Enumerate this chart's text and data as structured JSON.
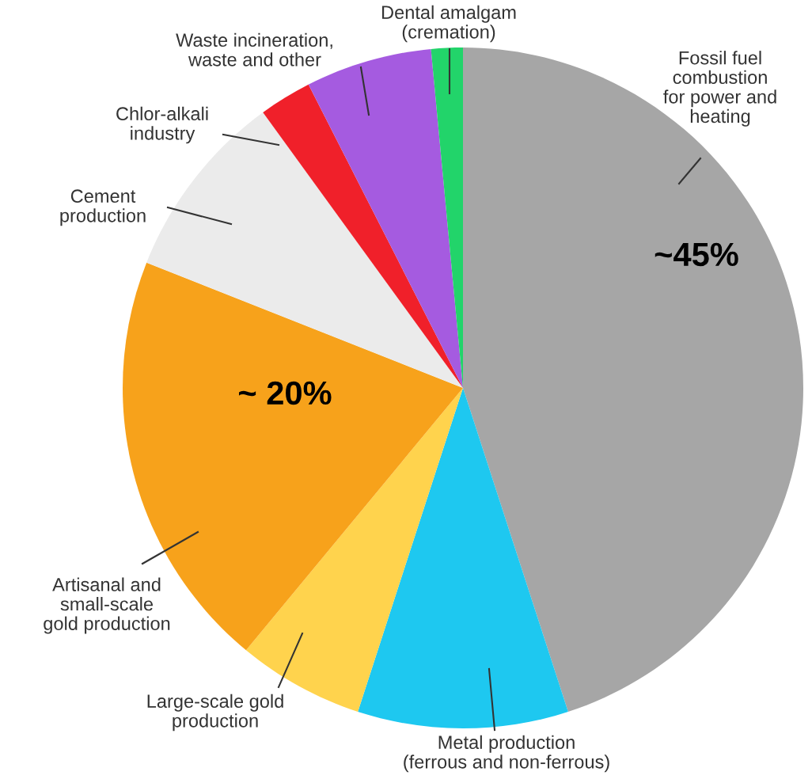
{
  "chart_data": {
    "type": "pie",
    "categories": [
      "Fossil fuel\ncombustion\nfor power and\nheating",
      "Metal production\n(ferrous and non-ferrous)",
      "Large-scale gold\nproduction",
      "Artisanal and\nsmall-scale\ngold production",
      "Cement\nproduction",
      "Chlor-alkali\nindustry",
      "Waste incineration,\nwaste and other",
      "Dental amalgam\n(cremation)"
    ],
    "values": [
      45,
      10,
      6,
      20,
      9,
      2.5,
      6,
      1.5
    ],
    "colors": [
      "#a6a6a6",
      "#1ec8f0",
      "#ffd34d",
      "#f7a21b",
      "#ebebeb",
      "#f0202a",
      "#a55be0",
      "#22d46a"
    ],
    "value_labels": [
      "~45%",
      null,
      null,
      "~ 20%",
      null,
      null,
      null,
      null
    ]
  }
}
